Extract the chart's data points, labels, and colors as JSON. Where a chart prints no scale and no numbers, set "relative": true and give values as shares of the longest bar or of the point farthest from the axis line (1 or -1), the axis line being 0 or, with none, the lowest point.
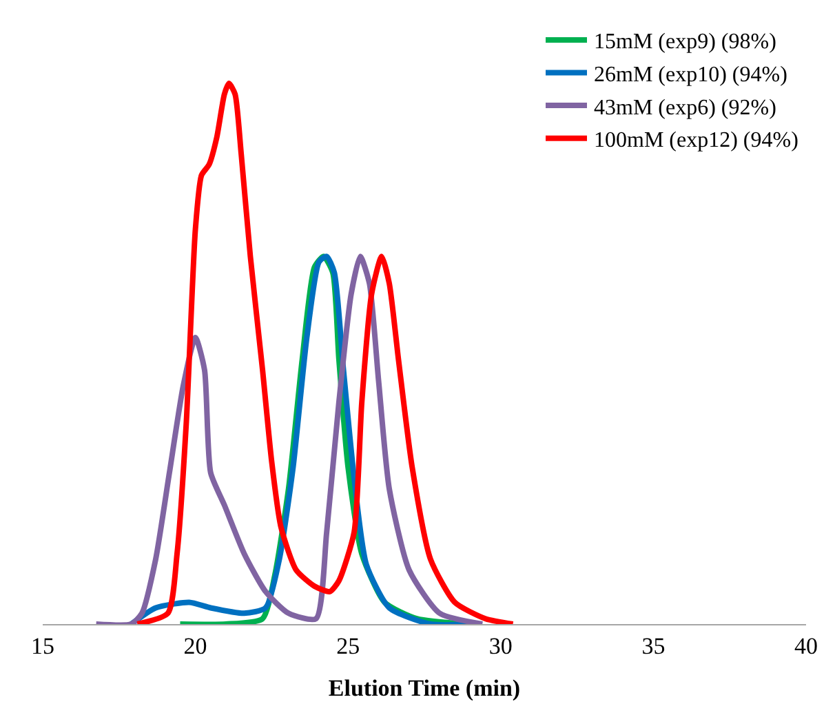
{
  "chart_data": {
    "type": "line",
    "xlabel": "Elution Time (min)",
    "xlim": [
      15,
      40
    ],
    "xticks": [
      15,
      20,
      25,
      30,
      35,
      40
    ],
    "relative": true,
    "legend": "top right",
    "marker": "none",
    "line_style": "solid",
    "series": [
      {
        "name": "15mM (exp9) (98%)",
        "color": "#00b050",
        "x": [
          19.5,
          21,
          22.2,
          22.6,
          23.05,
          23.5,
          23.9,
          24.2,
          24.5,
          24.7,
          25.0,
          25.45,
          26.2,
          27.25,
          28.9
        ],
        "values": [
          0,
          0,
          0.01,
          0.09,
          0.25,
          0.49,
          0.66,
          0.68,
          0.65,
          0.49,
          0.29,
          0.13,
          0.04,
          0.01,
          0
        ]
      },
      {
        "name": "26mM (exp10) (94%)",
        "color": "#0070c0",
        "x": [
          17.9,
          18.7,
          19.8,
          20.5,
          21.6,
          22.3,
          22.75,
          23.2,
          23.65,
          24.05,
          24.3,
          24.55,
          24.85,
          25.2,
          25.6,
          26.35,
          27.7,
          29.1
        ],
        "values": [
          0,
          0.03,
          0.04,
          0.03,
          0.02,
          0.03,
          0.12,
          0.29,
          0.53,
          0.67,
          0.68,
          0.65,
          0.47,
          0.27,
          0.11,
          0.03,
          0,
          0
        ]
      },
      {
        "name": "43mM (exp6) (92%)",
        "color": "#8064a2",
        "x": [
          16.75,
          17.9,
          18.25,
          18.7,
          19.15,
          19.6,
          20.0,
          20.3,
          20.5,
          20.95,
          21.6,
          22.3,
          23.05,
          23.95,
          24.3,
          24.7,
          25.1,
          25.4,
          25.7,
          26.0,
          26.35,
          27.0,
          28.0,
          29.4
        ],
        "values": [
          0,
          0,
          0.02,
          0.12,
          0.28,
          0.44,
          0.53,
          0.47,
          0.28,
          0.22,
          0.13,
          0.06,
          0.02,
          0.01,
          0.17,
          0.41,
          0.61,
          0.68,
          0.63,
          0.45,
          0.25,
          0.1,
          0.02,
          0
        ]
      },
      {
        "name": "100mM (exp12) (94%)",
        "color": "#ff0000",
        "x": [
          18.1,
          19.1,
          19.4,
          19.7,
          20.0,
          20.2,
          20.45,
          20.7,
          20.95,
          21.1,
          21.3,
          21.5,
          21.8,
          22.2,
          22.5,
          22.8,
          23.3,
          23.9,
          24.4,
          24.7,
          25.2,
          25.45,
          25.77,
          26.1,
          26.35,
          26.65,
          27.1,
          27.7,
          28.5,
          29.5,
          30.4
        ],
        "values": [
          0,
          0.02,
          0.13,
          0.37,
          0.73,
          0.83,
          0.85,
          0.9,
          0.98,
          1,
          0.98,
          0.87,
          0.68,
          0.47,
          0.3,
          0.18,
          0.1,
          0.07,
          0.06,
          0.08,
          0.17,
          0.41,
          0.61,
          0.68,
          0.63,
          0.49,
          0.29,
          0.12,
          0.04,
          0.01,
          0
        ]
      }
    ]
  }
}
